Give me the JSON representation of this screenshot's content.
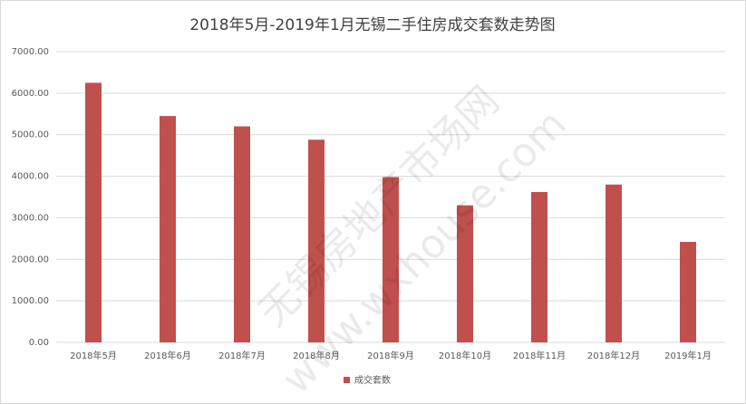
{
  "chart_data": {
    "type": "bar",
    "title": "2018年5月-2019年1月无锡二手住房成交套数走势图",
    "categories": [
      "2018年5月",
      "2018年6月",
      "2018年7月",
      "2018年8月",
      "2018年9月",
      "2018年10月",
      "2018年11月",
      "2018年12月",
      "2019年1月"
    ],
    "series": [
      {
        "name": "成交套数",
        "color": "#c0504d",
        "values": [
          6250,
          5450,
          5200,
          4880,
          3980,
          3300,
          3620,
          3800,
          2420
        ]
      }
    ],
    "ylim": [
      0,
      7000
    ],
    "yticks": [
      {
        "value": 0,
        "label": "0.00"
      },
      {
        "value": 1000,
        "label": "1000.00"
      },
      {
        "value": 2000,
        "label": "2000.00"
      },
      {
        "value": 3000,
        "label": "3000.00"
      },
      {
        "value": 4000,
        "label": "4000.00"
      },
      {
        "value": 5000,
        "label": "5000.00"
      },
      {
        "value": 6000,
        "label": "6000.00"
      },
      {
        "value": 7000,
        "label": "7000.00"
      }
    ],
    "grid": true,
    "legend": "bottom",
    "watermark": [
      "无锡房地产市场网",
      "www.wxhouse.com"
    ]
  }
}
